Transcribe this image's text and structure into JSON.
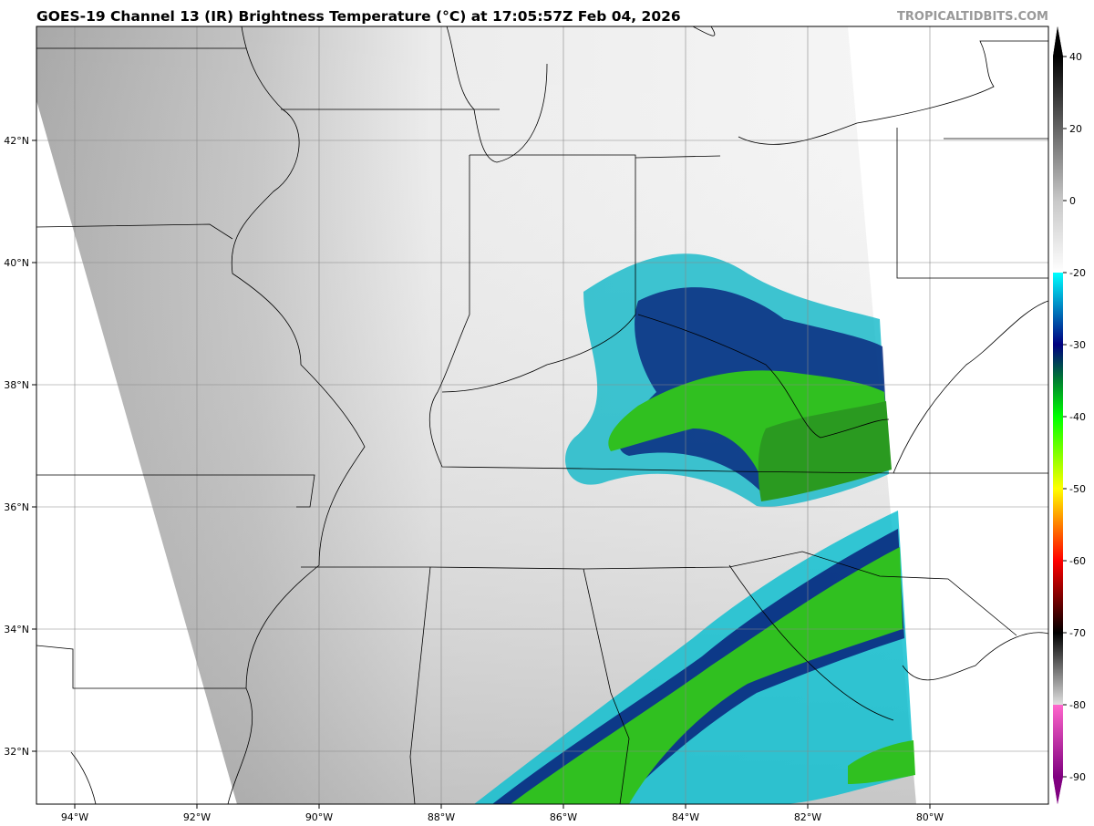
{
  "header": {
    "title": "GOES-19 Channel 13 (IR) Brightness Temperature (°C) at 17:05:57Z Feb 04, 2026",
    "brand": "TROPICALTIDBITS.COM"
  },
  "map": {
    "longitude_labels": [
      "94°W",
      "92°W",
      "90°W",
      "88°W",
      "86°W",
      "84°W",
      "82°W",
      "80°W"
    ],
    "latitude_labels": [
      "42°N",
      "40°N",
      "38°N",
      "36°N",
      "34°N",
      "32°N"
    ],
    "colors": {
      "land_outside_swath": "#ffffff",
      "borders": "#000000",
      "gridlines": "#888888"
    }
  },
  "colorbar": {
    "units": "°C",
    "range": [
      -90,
      40
    ],
    "tick_labels": [
      "40",
      "20",
      "0",
      "-20",
      "-30",
      "-40",
      "-50",
      "-60",
      "-70",
      "-80",
      "-90"
    ],
    "color_stops": [
      {
        "value": 40,
        "color": "#000000"
      },
      {
        "value": 0,
        "color": "#c8c8c8"
      },
      {
        "value": -20,
        "color": "#ffffff"
      },
      {
        "value": -20.01,
        "color": "#00ffff"
      },
      {
        "value": -30,
        "color": "#000080"
      },
      {
        "value": -35,
        "color": "#008030"
      },
      {
        "value": -40,
        "color": "#00ff00"
      },
      {
        "value": -50,
        "color": "#ffff00"
      },
      {
        "value": -60,
        "color": "#ff0000"
      },
      {
        "value": -70,
        "color": "#000000"
      },
      {
        "value": -79.99,
        "color": "#e0e0e0"
      },
      {
        "value": -80,
        "color": "#ff66cc"
      },
      {
        "value": -90,
        "color": "#800080"
      }
    ]
  }
}
